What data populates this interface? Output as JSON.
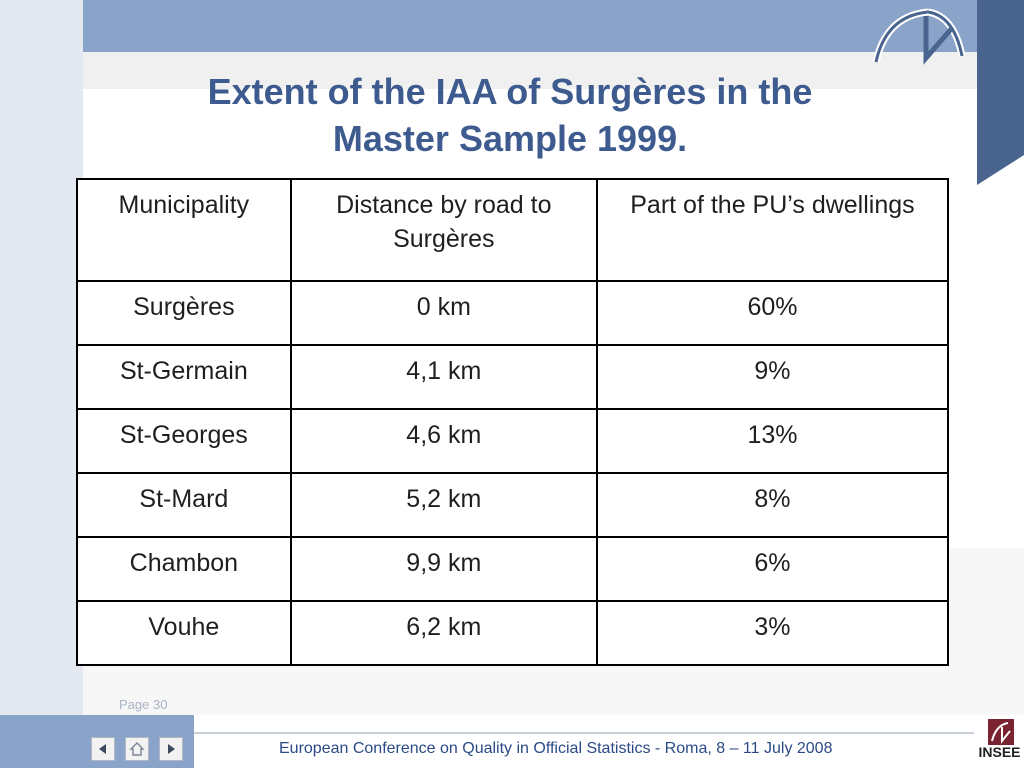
{
  "slide": {
    "title_line1": "Extent of the IAA of Surgères in the",
    "title_line2": "Master Sample 1999.",
    "page_label": "Page 30"
  },
  "table": {
    "headers": [
      "Municipality",
      "Distance by road to Surgères",
      "Part of the PU’s dwellings"
    ],
    "rows": [
      [
        "Surgères",
        "0 km",
        "60%"
      ],
      [
        "St-Germain",
        "4,1 km",
        "9%"
      ],
      [
        "St-Georges",
        "4,6 km",
        "13%"
      ],
      [
        "St-Mard",
        "5,2 km",
        "8%"
      ],
      [
        "Chambon",
        "9,9 km",
        "6%"
      ],
      [
        "Vouhe",
        "6,2 km",
        "3%"
      ]
    ]
  },
  "footer": {
    "conference": "European Conference on Quality in Official Statistics -  Roma, 8 – 11 July 2008",
    "logo_text": "INSEE"
  },
  "nav": {
    "icons": [
      "arrow-left-icon",
      "home-icon",
      "arrow-right-icon"
    ]
  },
  "colors": {
    "accent_blue": "#8aa3c8",
    "dark_blue": "#4a6490",
    "title_blue": "#3e5b8f"
  }
}
